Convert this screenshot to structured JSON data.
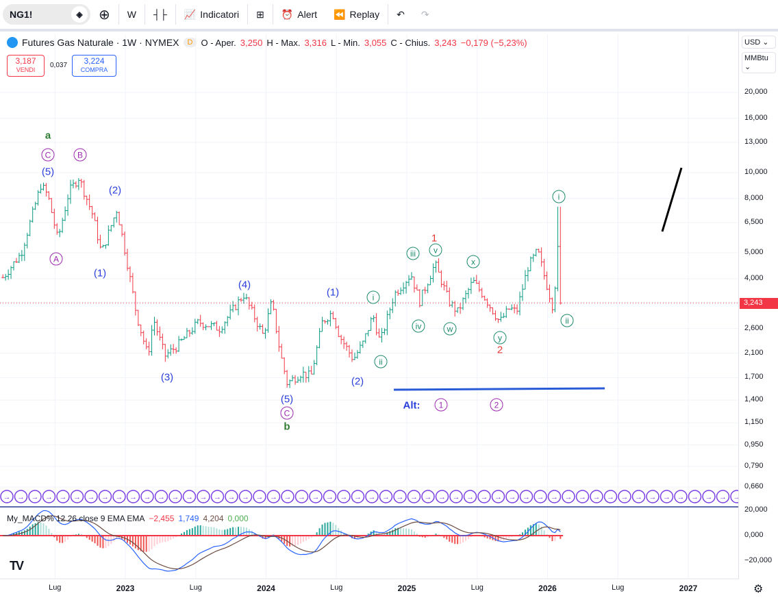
{
  "toolbar": {
    "symbol": "NG1!",
    "interval": "W",
    "indicators": "Indicatori",
    "alert": "Alert",
    "replay": "Replay"
  },
  "legend": {
    "title": "Futures Gas Naturale · 1W · NYMEX",
    "badge": "D",
    "o_label": "O - Aper.",
    "o": "3,250",
    "h_label": "H - Max.",
    "h": "3,316",
    "l_label": "L - Min.",
    "l": "3,055",
    "c_label": "C - Chius.",
    "c": "3,243",
    "change": "−0,179 (−5,23%)"
  },
  "trade": {
    "sell_price": "3,187",
    "sell_label": "VENDI",
    "spread": "0,037",
    "buy_price": "3,224",
    "buy_label": "COMPRA"
  },
  "axis": {
    "currency": "USD",
    "unit": "MMBtu",
    "current_price": "3,243",
    "ticks": [
      [
        "20,000",
        20
      ],
      [
        "16,000",
        16
      ],
      [
        "13,000",
        13
      ],
      [
        "10,000",
        10
      ],
      [
        "8,000",
        8
      ],
      [
        "6,500",
        6.5
      ],
      [
        "5,000",
        5
      ],
      [
        "4,000",
        4
      ],
      [
        "2,600",
        2.6
      ],
      [
        "2,100",
        2.1
      ],
      [
        "1,700",
        1.7
      ],
      [
        "1,400",
        1.4
      ],
      [
        "1,150",
        1.15
      ],
      [
        "0,950",
        0.95
      ],
      [
        "0,790",
        0.79
      ],
      [
        "0,660",
        0.66
      ]
    ],
    "macd_ticks": [
      [
        "20,000",
        20
      ],
      [
        "0,000",
        0
      ],
      [
        "−20,000",
        -20
      ]
    ],
    "time": [
      [
        "Lug",
        2022.5
      ],
      [
        "2023",
        2023
      ],
      [
        "Lug",
        2023.5
      ],
      [
        "2024",
        2024
      ],
      [
        "Lug",
        2024.5
      ],
      [
        "2025",
        2025
      ],
      [
        "Lug",
        2025.5
      ],
      [
        "2026",
        2026
      ],
      [
        "Lug",
        2026.5
      ],
      [
        "2027",
        2027
      ]
    ]
  },
  "macd_legend": {
    "name": "My_MACD% 12 26 close 9 EMA EMA",
    "hist": "−2,455",
    "macd": "1,749",
    "signal": "4,204",
    "zero": "0,000"
  },
  "waves": [
    "a",
    "C",
    "(5)",
    "B",
    "A",
    "(2)",
    "(1)",
    "(3)",
    "(4)",
    "(5)",
    "C",
    "b",
    "(1)",
    "i",
    "ii",
    "(2)",
    "iii",
    "iv",
    "1",
    "v",
    "w",
    "x",
    "y",
    "2",
    "i",
    "ii",
    "Alt:",
    "1",
    "2"
  ],
  "colors": {
    "up": "#089981",
    "down": "#f23645",
    "blue": "#2a3fdc",
    "purple": "#9c27b0",
    "teal": "#1b8a6b",
    "green": "#2e7d32",
    "red": "#e53935"
  },
  "chart_data": {
    "type": "ohlc",
    "scale": "log",
    "anchors": [
      [
        2022.13,
        4.04
      ],
      [
        2022.26,
        4.98
      ],
      [
        2022.4,
        9.0
      ],
      [
        2022.45,
        8.2
      ],
      [
        2022.52,
        5.6
      ],
      [
        2022.6,
        8.5
      ],
      [
        2022.67,
        9.6
      ],
      [
        2022.77,
        6.9
      ],
      [
        2022.83,
        4.98
      ],
      [
        2022.94,
        7.3
      ],
      [
        2023.01,
        4.7
      ],
      [
        2023.08,
        2.92
      ],
      [
        2023.16,
        2.05
      ],
      [
        2023.2,
        2.83
      ],
      [
        2023.28,
        2.05
      ],
      [
        2023.37,
        2.24
      ],
      [
        2023.52,
        2.75
      ],
      [
        2023.67,
        2.6
      ],
      [
        2023.84,
        3.49
      ],
      [
        2023.98,
        2.45
      ],
      [
        2024.04,
        3.28
      ],
      [
        2024.1,
        2.11
      ],
      [
        2024.15,
        1.62
      ],
      [
        2024.25,
        1.77
      ],
      [
        2024.32,
        1.72
      ],
      [
        2024.4,
        2.75
      ],
      [
        2024.47,
        3.0
      ],
      [
        2024.52,
        2.45
      ],
      [
        2024.62,
        1.99
      ],
      [
        2024.69,
        2.3
      ],
      [
        2024.76,
        2.92
      ],
      [
        2024.81,
        2.3
      ],
      [
        2024.91,
        3.49
      ],
      [
        2025.03,
        4.16
      ],
      [
        2025.09,
        3.28
      ],
      [
        2025.2,
        4.55
      ],
      [
        2025.3,
        3.28
      ],
      [
        2025.36,
        3.0
      ],
      [
        2025.47,
        3.92
      ],
      [
        2025.54,
        3.49
      ],
      [
        2025.66,
        2.75
      ],
      [
        2025.73,
        3.1
      ],
      [
        2025.78,
        3.0
      ],
      [
        2025.86,
        4.42
      ],
      [
        2025.93,
        5.1
      ],
      [
        2025.98,
        4.04
      ],
      [
        2026.04,
        3.1
      ],
      [
        2026.08,
        5.77
      ],
      [
        2026.11,
        3.243
      ]
    ]
  }
}
